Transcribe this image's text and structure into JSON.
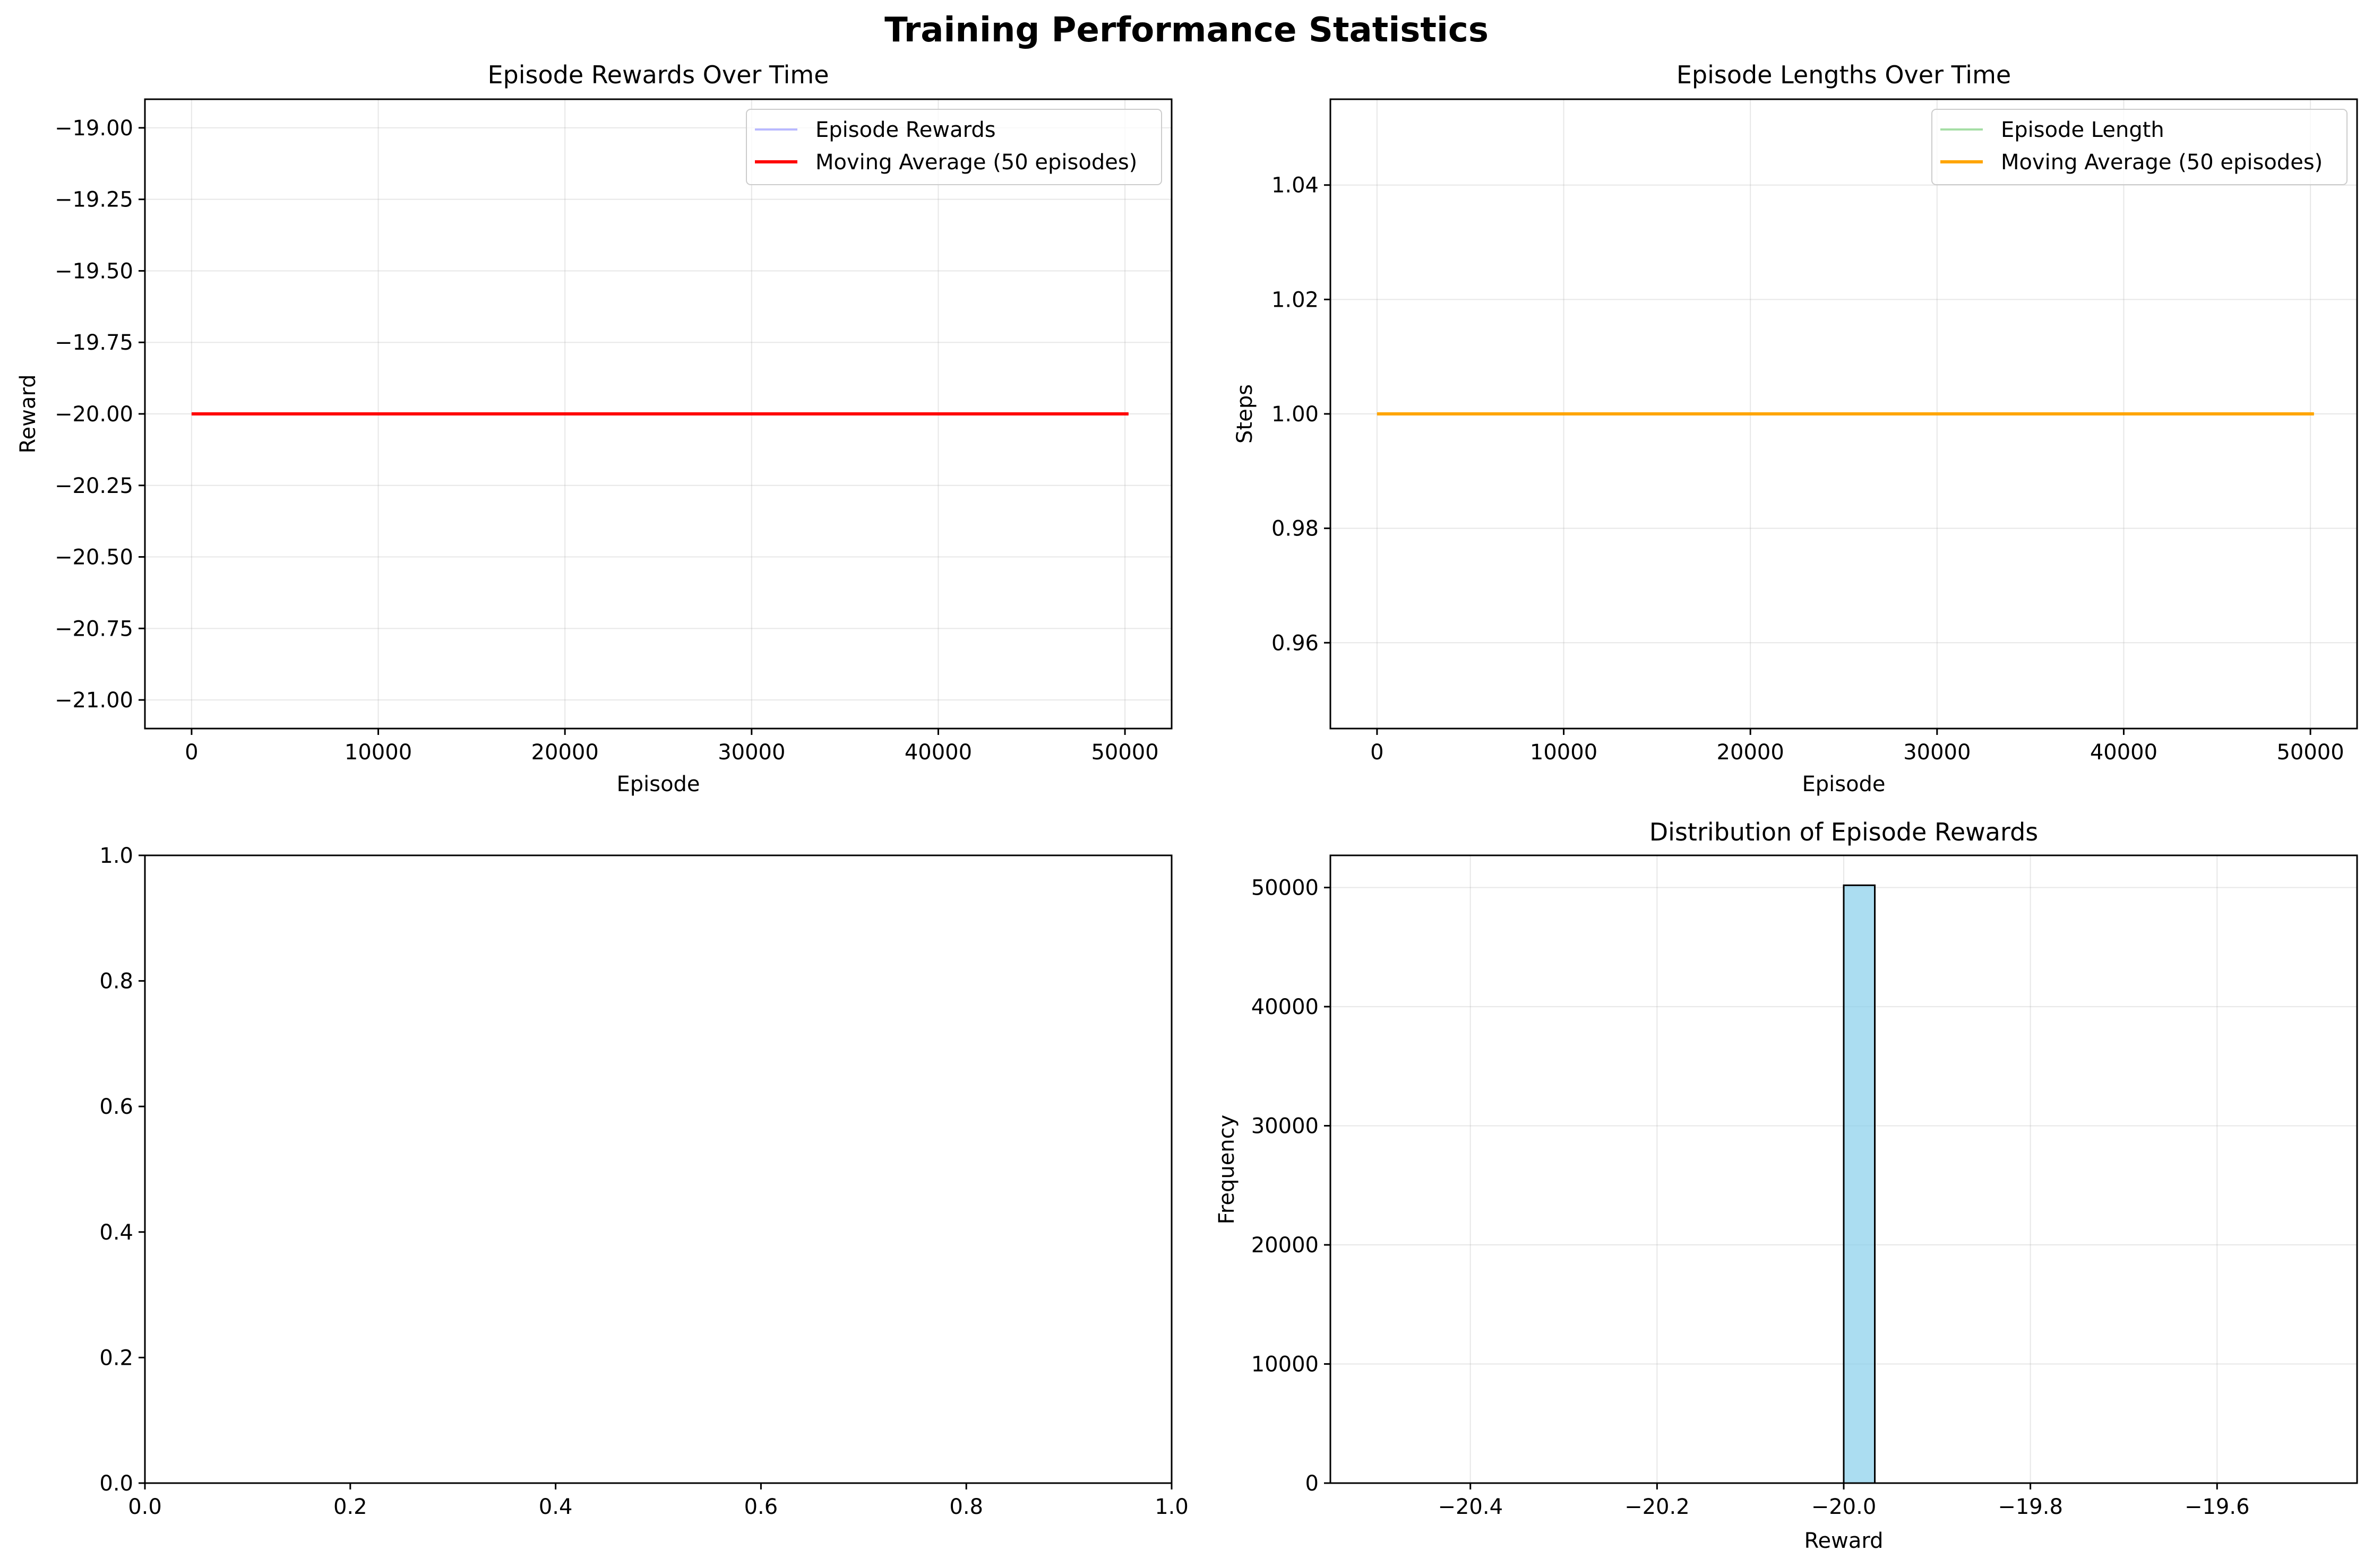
{
  "figure": {
    "title": "Training Performance Statistics"
  },
  "chart_data": [
    {
      "type": "line",
      "title": "Episode Rewards Over Time",
      "xlabel": "Episode",
      "ylabel": "Reward",
      "xlim": [
        -2500,
        52500
      ],
      "ylim": [
        -21.1,
        -18.9
      ],
      "xticks": [
        0,
        10000,
        20000,
        30000,
        40000,
        50000
      ],
      "yticks": [
        -21.0,
        -20.75,
        -20.5,
        -20.25,
        -20.0,
        -19.75,
        -19.5,
        -19.25,
        -19.0
      ],
      "xtick_labels": [
        "0",
        "10000",
        "20000",
        "30000",
        "40000",
        "50000"
      ],
      "ytick_labels": [
        "−21.00",
        "−20.75",
        "−20.50",
        "−20.25",
        "−20.00",
        "−19.75",
        "−19.50",
        "−19.25",
        "−19.00"
      ],
      "grid": true,
      "legend_position": "top-right",
      "series": [
        {
          "name": "Episode Rewards",
          "color": "#8080ff",
          "x": [
            0,
            50190
          ],
          "y": [
            -20,
            -20
          ]
        },
        {
          "name": "Moving Average (50 episodes)",
          "color": "#ff0000",
          "x": [
            0,
            50190
          ],
          "y": [
            -20,
            -20
          ]
        }
      ]
    },
    {
      "type": "line",
      "title": "Episode Lengths Over Time",
      "xlabel": "Episode",
      "ylabel": "Steps",
      "xlim": [
        -2500,
        52500
      ],
      "ylim": [
        0.945,
        1.055
      ],
      "xticks": [
        0,
        10000,
        20000,
        30000,
        40000,
        50000
      ],
      "yticks": [
        0.96,
        0.98,
        1.0,
        1.02,
        1.04
      ],
      "xtick_labels": [
        "0",
        "10000",
        "20000",
        "30000",
        "40000",
        "50000"
      ],
      "ytick_labels": [
        "0.96",
        "0.98",
        "1.00",
        "1.02",
        "1.04"
      ],
      "grid": true,
      "legend_position": "top-right",
      "series": [
        {
          "name": "Episode Length",
          "color": "#7fd07f",
          "x": [
            0,
            50190
          ],
          "y": [
            1,
            1
          ]
        },
        {
          "name": "Moving Average (50 episodes)",
          "color": "#ffa500",
          "x": [
            0,
            50190
          ],
          "y": [
            1,
            1
          ]
        }
      ]
    },
    {
      "type": "line",
      "title": "",
      "xlabel": "",
      "ylabel": "",
      "xlim": [
        0,
        1
      ],
      "ylim": [
        0,
        1
      ],
      "xticks": [
        0,
        0.2,
        0.4,
        0.6,
        0.8,
        1.0
      ],
      "yticks": [
        0,
        0.2,
        0.4,
        0.6,
        0.8,
        1.0
      ],
      "xtick_labels": [
        "0.0",
        "0.2",
        "0.4",
        "0.6",
        "0.8",
        "1.0"
      ],
      "ytick_labels": [
        "0.0",
        "0.2",
        "0.4",
        "0.6",
        "0.8",
        "1.0"
      ],
      "grid": false,
      "series": []
    },
    {
      "type": "bar",
      "title": "Distribution of Episode Rewards",
      "xlabel": "Reward",
      "ylabel": "Frequency",
      "xlim": [
        -20.55,
        -19.45
      ],
      "ylim": [
        0,
        52700
      ],
      "xticks": [
        -20.4,
        -20.2,
        -20.0,
        -19.8,
        -19.6
      ],
      "yticks": [
        0,
        10000,
        20000,
        30000,
        40000,
        50000
      ],
      "xtick_labels": [
        "−20.4",
        "−20.2",
        "−20.0",
        "−19.8",
        "−19.6"
      ],
      "ytick_labels": [
        "0",
        "10000",
        "20000",
        "30000",
        "40000",
        "50000"
      ],
      "grid": true,
      "color": "#87ceeb",
      "bin_edges": [
        -20.5,
        -20.4667,
        -20.4333,
        -20.4,
        -20.3667,
        -20.3333,
        -20.3,
        -20.2667,
        -20.2333,
        -20.2,
        -20.1667,
        -20.1333,
        -20.1,
        -20.0667,
        -20.0333,
        -20.0,
        -19.9667,
        -19.9333,
        -19.9,
        -19.8667,
        -19.8333,
        -19.8,
        -19.7667,
        -19.7333,
        -19.7,
        -19.6667,
        -19.6333,
        -19.6,
        -19.5667,
        -19.5333,
        -19.5
      ],
      "counts": [
        0,
        0,
        0,
        0,
        0,
        0,
        0,
        0,
        0,
        0,
        0,
        0,
        0,
        0,
        0,
        50190,
        0,
        0,
        0,
        0,
        0,
        0,
        0,
        0,
        0,
        0,
        0,
        0,
        0,
        0
      ]
    }
  ]
}
